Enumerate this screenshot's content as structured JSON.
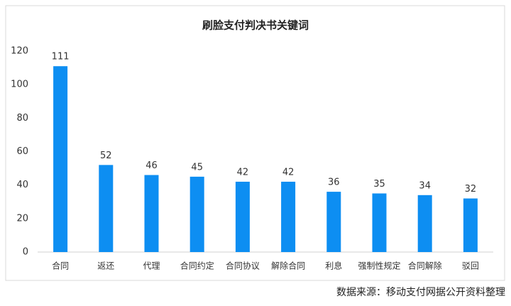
{
  "chart_data": {
    "type": "bar",
    "title": "刷脸支付判决书关键词",
    "categories": [
      "合同",
      "返还",
      "代理",
      "合同约定",
      "合同协议",
      "解除合同",
      "利息",
      "强制性规定",
      "合同解除",
      "驳回"
    ],
    "values": [
      111,
      52,
      46,
      45,
      42,
      42,
      36,
      35,
      34,
      32
    ],
    "color": "#0d8ef2",
    "ylim": [
      0,
      120
    ],
    "yticks": [
      0,
      20,
      40,
      60,
      80,
      100,
      120
    ],
    "grid": false,
    "source": "数据来源：移动支付网据公开资料整理"
  }
}
